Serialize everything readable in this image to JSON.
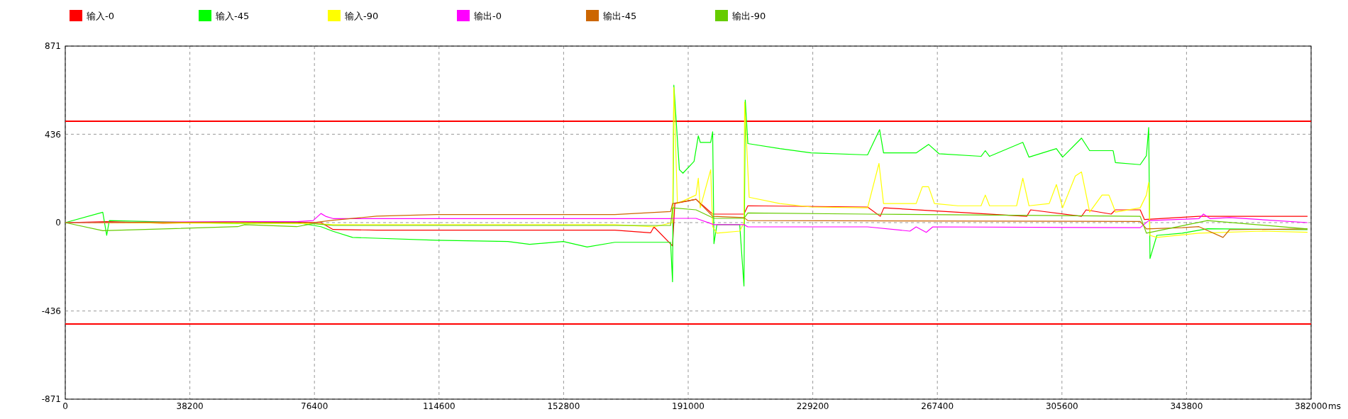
{
  "chart_data": {
    "type": "line",
    "xlabel": "ms",
    "xlim": [
      0,
      382000
    ],
    "xticks": [
      0,
      38200,
      76400,
      114600,
      152800,
      191000,
      229200,
      267400,
      305600,
      343800,
      382000
    ],
    "ylim": [
      -871,
      871
    ],
    "yticks": [
      -871,
      -436,
      0,
      436,
      871
    ],
    "grid": true,
    "legend": "top",
    "ref_lines": [
      {
        "axis": "y",
        "value": 500,
        "color": "#ff0000"
      },
      {
        "axis": "y",
        "value": -500,
        "color": "#ff0000"
      }
    ],
    "series": [
      {
        "name": "输入-0",
        "color": "#ff0000",
        "x": [
          0,
          12700,
          30000,
          52900,
          71000,
          78400,
          82100,
          95500,
          113800,
          141800,
          168500,
          179500,
          180500,
          186200,
          186900,
          193400,
          198500,
          208100,
          209300,
          246000,
          249900,
          251000,
          294800,
          296000,
          311600,
          313000,
          320700,
          322000,
          329600,
          330900,
          347600,
          380900
        ],
        "values": [
          0,
          5,
          -3,
          4,
          2,
          0,
          -34,
          -37,
          -37,
          -37,
          -37,
          -50,
          -21,
          -115,
          94,
          115,
          42,
          42,
          83,
          77,
          31,
          73,
          31,
          63,
          31,
          63,
          42,
          63,
          63,
          15,
          31,
          31
        ]
      },
      {
        "name": "输入-45",
        "color": "#00ff00",
        "x": [
          0,
          11500,
          12700,
          13500,
          52900,
          71000,
          78400,
          82100,
          88100,
          113800,
          135700,
          142400,
          152700,
          160000,
          168500,
          179500,
          185600,
          186200,
          186600,
          188300,
          189400,
          192800,
          194100,
          194700,
          197900,
          198500,
          198900,
          199800,
          206800,
          208100,
          208500,
          209300,
          219100,
          228700,
          246000,
          249700,
          250900,
          260900,
          264700,
          267900,
          280800,
          282100,
          283400,
          293600,
          295500,
          303900,
          305800,
          311600,
          314100,
          321300,
          322000,
          329600,
          331500,
          332200,
          332600,
          334700,
          342500,
          350200,
          380900
        ],
        "values": [
          0,
          51,
          -63,
          10,
          -5,
          0,
          -20,
          -43,
          -73,
          -87,
          -93,
          -107,
          -93,
          -120,
          -97,
          -97,
          -97,
          -292,
          678,
          261,
          244,
          302,
          428,
          396,
          396,
          448,
          -104,
          -10,
          -10,
          -313,
          605,
          390,
          365,
          344,
          334,
          459,
          344,
          344,
          386,
          340,
          327,
          355,
          327,
          396,
          323,
          365,
          323,
          417,
          355,
          355,
          296,
          286,
          330,
          469,
          -177,
          -63,
          -52,
          -30,
          -35
        ]
      },
      {
        "name": "输入-90",
        "color": "#ffff00",
        "x": [
          0,
          76000,
          82100,
          113800,
          168500,
          180500,
          186200,
          186600,
          187700,
          193400,
          194100,
          194700,
          197900,
          198500,
          199800,
          206800,
          208100,
          208300,
          209700,
          219100,
          228700,
          246000,
          249500,
          250900,
          260900,
          262800,
          264700,
          266500,
          273700,
          280800,
          282100,
          283400,
          291700,
          293600,
          295500,
          301700,
          303900,
          305800,
          309700,
          311600,
          314100,
          317900,
          320000,
          321300,
          322000,
          329600,
          331500,
          332200,
          332600,
          334700,
          347600,
          367000,
          380900
        ],
        "values": [
          0,
          -5,
          -10,
          -10,
          -10,
          -21,
          0,
          667,
          94,
          136,
          219,
          73,
          261,
          -20,
          -52,
          -42,
          0,
          594,
          125,
          94,
          77,
          73,
          292,
          94,
          94,
          177,
          177,
          94,
          83,
          83,
          136,
          83,
          83,
          219,
          83,
          94,
          188,
          73,
          230,
          250,
          52,
          136,
          136,
          83,
          52,
          73,
          136,
          198,
          -63,
          -73,
          -52,
          -42,
          -48
        ]
      },
      {
        "name": "输出-0",
        "color": "#ff00ff",
        "x": [
          0,
          52900,
          71000,
          76000,
          78400,
          80000,
          82100,
          95500,
          113800,
          168500,
          185600,
          186200,
          193400,
          198900,
          208100,
          209300,
          246000,
          259000,
          260900,
          264000,
          266000,
          329600,
          332200,
          347600,
          349000,
          351000,
          357000,
          380900
        ],
        "values": [
          0,
          5,
          5,
          10,
          45,
          30,
          20,
          20,
          20,
          20,
          20,
          21,
          21,
          -10,
          -10,
          -21,
          -21,
          -42,
          -21,
          -48,
          -21,
          -25,
          10,
          20,
          42,
          20,
          25,
          0
        ]
      },
      {
        "name": "输出-45",
        "color": "#cc6600",
        "x": [
          0,
          52900,
          76000,
          82100,
          95500,
          113800,
          168500,
          185600,
          186200,
          193400,
          198500,
          208100,
          209300,
          329600,
          331500,
          342500,
          347600,
          355000,
          357000,
          380900
        ],
        "values": [
          0,
          2,
          0,
          12,
          32,
          40,
          40,
          55,
          94,
          115,
          31,
          25,
          10,
          6,
          -31,
          -25,
          -20,
          -73,
          -35,
          -31
        ]
      },
      {
        "name": "输出-90",
        "color": "#66cc00",
        "x": [
          0,
          11500,
          52900,
          55000,
          71000,
          76000,
          82100,
          113800,
          168500,
          179500,
          185600,
          186200,
          193400,
          198900,
          208100,
          209300,
          246000,
          329600,
          331500,
          350200,
          380900
        ],
        "values": [
          0,
          -40,
          -20,
          -10,
          -20,
          -5,
          -14,
          -14,
          -14,
          -14,
          -14,
          73,
          63,
          21,
          21,
          48,
          42,
          31,
          -52,
          10,
          -31
        ]
      }
    ]
  }
}
